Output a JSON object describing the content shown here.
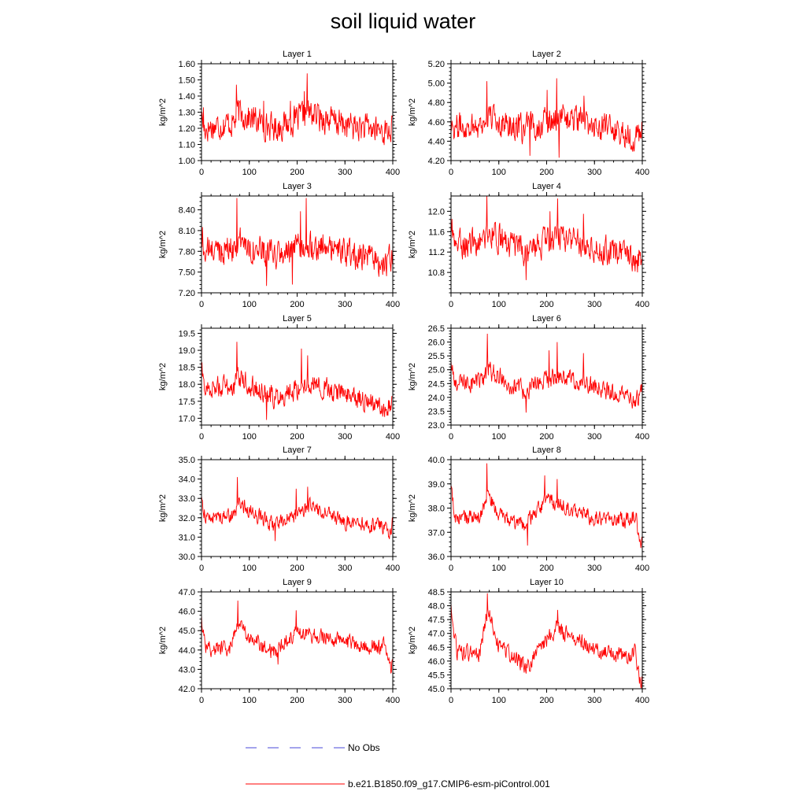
{
  "title": "soil liquid water",
  "legend": [
    {
      "label": "No Obs",
      "color": "#4a4ad9",
      "style": "dashed"
    },
    {
      "label": "b.e21.B1850.f09_g17.CMIP6-esm-piControl.001",
      "color": "#ff0000",
      "style": "solid"
    }
  ],
  "chart_data": [
    {
      "type": "line",
      "title": "Layer 1",
      "ylabel": "kg/m^2",
      "xlim": [
        0,
        400
      ],
      "xticks": [
        "0",
        "100",
        "200",
        "300",
        "400"
      ],
      "ylim": [
        1.0,
        1.6
      ],
      "yticks": [
        "1.00",
        "1.10",
        "1.20",
        "1.30",
        "1.40",
        "1.50",
        "1.60"
      ],
      "series": [
        {
          "n": 400,
          "mean": 1.22,
          "amp": 0.055,
          "trend": [
            [
              0,
              1.28
            ],
            [
              5,
              1.2
            ],
            [
              70,
              1.24
            ],
            [
              75,
              1.3
            ],
            [
              150,
              1.2
            ],
            [
              200,
              1.25
            ],
            [
              220,
              1.3
            ],
            [
              300,
              1.22
            ],
            [
              390,
              1.18
            ],
            [
              400,
              1.2
            ]
          ],
          "spikes": [
            [
              73,
              1.47
            ],
            [
              215,
              1.43
            ],
            [
              221,
              1.54
            ],
            [
              4,
              1.33
            ],
            [
              130,
              1.37
            ],
            [
              186,
              1.37
            ]
          ]
        }
      ]
    },
    {
      "type": "line",
      "title": "Layer 2",
      "ylabel": "kg/m^2",
      "xlim": [
        0,
        400
      ],
      "xticks": [
        "0",
        "100",
        "200",
        "300",
        "400"
      ],
      "ylim": [
        4.2,
        5.2
      ],
      "yticks": [
        "4.20",
        "4.40",
        "4.60",
        "4.80",
        "5.00",
        "5.20"
      ],
      "series": [
        {
          "n": 400,
          "mean": 4.55,
          "amp": 0.09,
          "trend": [
            [
              0,
              4.65
            ],
            [
              5,
              4.55
            ],
            [
              70,
              4.58
            ],
            [
              75,
              4.66
            ],
            [
              150,
              4.52
            ],
            [
              200,
              4.6
            ],
            [
              220,
              4.66
            ],
            [
              300,
              4.56
            ],
            [
              390,
              4.45
            ],
            [
              400,
              4.5
            ]
          ],
          "spikes": [
            [
              75,
              5.02
            ],
            [
              221,
              5.05
            ],
            [
              278,
              4.87
            ],
            [
              201,
              4.93
            ],
            [
              165,
              4.25
            ],
            [
              226,
              4.23
            ]
          ]
        }
      ]
    },
    {
      "type": "line",
      "title": "Layer 3",
      "ylabel": "kg/m^2",
      "xlim": [
        0,
        400
      ],
      "xticks": [
        "0",
        "100",
        "200",
        "300",
        "400"
      ],
      "ylim": [
        7.2,
        8.6
      ],
      "yticks": [
        "7.20",
        "7.50",
        "7.80",
        "8.10",
        "8.40"
      ],
      "series": [
        {
          "n": 400,
          "mean": 7.78,
          "amp": 0.13,
          "trend": [
            [
              0,
              7.95
            ],
            [
              5,
              7.8
            ],
            [
              70,
              7.85
            ],
            [
              75,
              7.95
            ],
            [
              150,
              7.72
            ],
            [
              200,
              7.82
            ],
            [
              220,
              7.92
            ],
            [
              300,
              7.78
            ],
            [
              390,
              7.62
            ],
            [
              400,
              7.7
            ]
          ],
          "spikes": [
            [
              74,
              8.57
            ],
            [
              219,
              8.57
            ],
            [
              207,
              8.38
            ],
            [
              136,
              7.3
            ],
            [
              190,
              7.32
            ],
            [
              2,
              8.15
            ]
          ]
        }
      ]
    },
    {
      "type": "line",
      "title": "Layer 4",
      "ylabel": "kg/m^2",
      "xlim": [
        0,
        400
      ],
      "xticks": [
        "0",
        "100",
        "200",
        "300",
        "400"
      ],
      "ylim": [
        10.4,
        12.3
      ],
      "yticks": [
        "10.8",
        "11.2",
        "11.6",
        "12.0"
      ],
      "series": [
        {
          "n": 400,
          "mean": 11.3,
          "amp": 0.17,
          "trend": [
            [
              0,
              11.6
            ],
            [
              5,
              11.35
            ],
            [
              70,
              11.4
            ],
            [
              75,
              11.6
            ],
            [
              150,
              11.2
            ],
            [
              200,
              11.4
            ],
            [
              220,
              11.55
            ],
            [
              300,
              11.3
            ],
            [
              390,
              11.05
            ],
            [
              400,
              11.2
            ]
          ],
          "spikes": [
            [
              75,
              12.3
            ],
            [
              223,
              12.25
            ],
            [
              207,
              12.0
            ],
            [
              277,
              11.95
            ],
            [
              157,
              10.65
            ],
            [
              2,
              11.85
            ]
          ]
        }
      ]
    },
    {
      "type": "line",
      "title": "Layer 5",
      "ylabel": "kg/m^2",
      "xlim": [
        0,
        400
      ],
      "xticks": [
        "0",
        "100",
        "200",
        "300",
        "400"
      ],
      "ylim": [
        16.8,
        19.65
      ],
      "yticks": [
        "17.0",
        "17.5",
        "18.0",
        "18.5",
        "19.0",
        "19.5"
      ],
      "series": [
        {
          "n": 400,
          "mean": 17.75,
          "amp": 0.2,
          "trend": [
            [
              0,
              18.5
            ],
            [
              5,
              17.9
            ],
            [
              70,
              17.95
            ],
            [
              75,
              18.2
            ],
            [
              150,
              17.6
            ],
            [
              200,
              17.9
            ],
            [
              220,
              18.05
            ],
            [
              300,
              17.7
            ],
            [
              390,
              17.3
            ],
            [
              400,
              17.6
            ]
          ],
          "spikes": [
            [
              74,
              19.25
            ],
            [
              209,
              19.05
            ],
            [
              222,
              18.85
            ],
            [
              136,
              16.95
            ],
            [
              389,
              17.2
            ]
          ]
        }
      ]
    },
    {
      "type": "line",
      "title": "Layer 6",
      "ylabel": "kg/m^2",
      "xlim": [
        0,
        400
      ],
      "xticks": [
        "0",
        "100",
        "200",
        "300",
        "400"
      ],
      "ylim": [
        23.0,
        26.5
      ],
      "yticks": [
        "23.0",
        "23.5",
        "24.0",
        "24.5",
        "25.0",
        "25.5",
        "26.0",
        "26.5"
      ],
      "series": [
        {
          "n": 400,
          "mean": 24.45,
          "amp": 0.22,
          "trend": [
            [
              0,
              25.3
            ],
            [
              6,
              24.5
            ],
            [
              70,
              24.6
            ],
            [
              76,
              25.0
            ],
            [
              150,
              24.2
            ],
            [
              200,
              24.6
            ],
            [
              220,
              24.8
            ],
            [
              300,
              24.4
            ],
            [
              390,
              23.9
            ],
            [
              400,
              24.4
            ]
          ],
          "spikes": [
            [
              76,
              26.3
            ],
            [
              222,
              26.0
            ],
            [
              205,
              25.7
            ],
            [
              277,
              25.6
            ],
            [
              157,
              23.45
            ],
            [
              392,
              23.7
            ]
          ]
        }
      ]
    },
    {
      "type": "line",
      "title": "Layer 7",
      "ylabel": "kg/m^2",
      "xlim": [
        0,
        400
      ],
      "xticks": [
        "0",
        "100",
        "200",
        "300",
        "400"
      ],
      "ylim": [
        30.0,
        35.0
      ],
      "yticks": [
        "30.0",
        "31.0",
        "32.0",
        "33.0",
        "34.0",
        "35.0"
      ],
      "series": [
        {
          "n": 400,
          "mean": 31.8,
          "amp": 0.24,
          "trend": [
            [
              0,
              33.0
            ],
            [
              8,
              32.0
            ],
            [
              70,
              32.1
            ],
            [
              76,
              32.8
            ],
            [
              150,
              31.6
            ],
            [
              200,
              32.2
            ],
            [
              225,
              32.6
            ],
            [
              300,
              31.8
            ],
            [
              385,
              31.5
            ],
            [
              393,
              31.0
            ],
            [
              400,
              31.8
            ]
          ],
          "spikes": [
            [
              75,
              34.1
            ],
            [
              222,
              33.6
            ],
            [
              198,
              33.5
            ],
            [
              154,
              30.8
            ],
            [
              393,
              30.9
            ]
          ]
        }
      ]
    },
    {
      "type": "line",
      "title": "Layer 8",
      "ylabel": "kg/m^2",
      "xlim": [
        0,
        400
      ],
      "xticks": [
        "0",
        "100",
        "200",
        "300",
        "400"
      ],
      "ylim": [
        36.0,
        40.0
      ],
      "yticks": [
        "36.0",
        "37.0",
        "38.0",
        "39.0",
        "40.0"
      ],
      "series": [
        {
          "n": 400,
          "mean": 37.5,
          "amp": 0.2,
          "trend": [
            [
              0,
              38.8
            ],
            [
              8,
              37.6
            ],
            [
              60,
              37.6
            ],
            [
              76,
              38.6
            ],
            [
              100,
              37.7
            ],
            [
              150,
              37.2
            ],
            [
              200,
              38.3
            ],
            [
              225,
              38.2
            ],
            [
              300,
              37.6
            ],
            [
              375,
              37.5
            ],
            [
              385,
              37.8
            ],
            [
              397,
              36.4
            ],
            [
              400,
              37.4
            ]
          ],
          "spikes": [
            [
              75,
              39.85
            ],
            [
              196,
              39.35
            ],
            [
              222,
              39.2
            ],
            [
              160,
              36.45
            ],
            [
              397,
              36.35
            ]
          ]
        }
      ]
    },
    {
      "type": "line",
      "title": "Layer 9",
      "ylabel": "kg/m^2",
      "xlim": [
        0,
        400
      ],
      "xticks": [
        "0",
        "100",
        "200",
        "300",
        "400"
      ],
      "ylim": [
        42.0,
        47.0
      ],
      "yticks": [
        "42.0",
        "43.0",
        "44.0",
        "45.0",
        "46.0",
        "47.0"
      ],
      "series": [
        {
          "n": 400,
          "mean": 44.3,
          "amp": 0.25,
          "trend": [
            [
              0,
              45.6
            ],
            [
              10,
              44.1
            ],
            [
              60,
              44.1
            ],
            [
              76,
              45.5
            ],
            [
              100,
              44.6
            ],
            [
              150,
              43.9
            ],
            [
              200,
              45.0
            ],
            [
              230,
              44.8
            ],
            [
              300,
              44.4
            ],
            [
              375,
              44.1
            ],
            [
              385,
              44.3
            ],
            [
              397,
              42.9
            ],
            [
              400,
              43.9
            ]
          ],
          "spikes": [
            [
              76,
              46.55
            ],
            [
              198,
              46.05
            ],
            [
              160,
              43.25
            ],
            [
              397,
              42.85
            ]
          ]
        }
      ]
    },
    {
      "type": "line",
      "title": "Layer 10",
      "ylabel": "kg/m^2",
      "xlim": [
        0,
        400
      ],
      "xticks": [
        "0",
        "100",
        "200",
        "300",
        "400"
      ],
      "ylim": [
        45.0,
        48.5
      ],
      "yticks": [
        "45.0",
        "45.5",
        "46.0",
        "46.5",
        "47.0",
        "47.5",
        "48.0",
        "48.5"
      ],
      "series": [
        {
          "n": 400,
          "mean": 46.3,
          "amp": 0.18,
          "trend": [
            [
              0,
              47.9
            ],
            [
              12,
              46.3
            ],
            [
              60,
              46.3
            ],
            [
              77,
              47.9
            ],
            [
              100,
              46.5
            ],
            [
              160,
              45.8
            ],
            [
              200,
              46.8
            ],
            [
              222,
              47.2
            ],
            [
              300,
              46.4
            ],
            [
              375,
              46.2
            ],
            [
              385,
              46.4
            ],
            [
              397,
              45.1
            ],
            [
              400,
              45.7
            ]
          ],
          "spikes": [
            [
              76,
              48.45
            ],
            [
              223,
              47.85
            ],
            [
              157,
              45.55
            ],
            [
              397,
              45.05
            ]
          ]
        }
      ]
    }
  ]
}
